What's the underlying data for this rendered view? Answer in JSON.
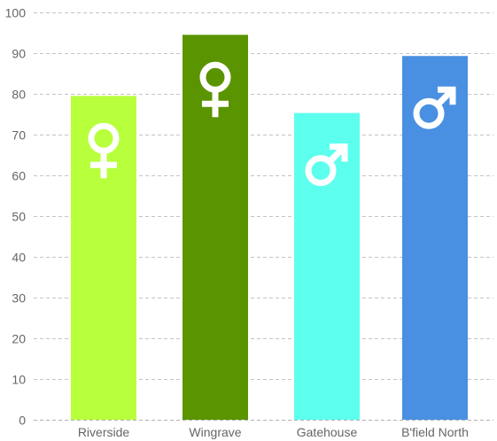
{
  "chart_data": {
    "type": "bar",
    "title": "",
    "xlabel": "",
    "ylabel": "",
    "ylim": [
      0,
      100
    ],
    "yticks": [
      0,
      10,
      20,
      30,
      40,
      50,
      60,
      70,
      80,
      90,
      100
    ],
    "grid": true,
    "legend": "none",
    "categories": [
      "Riverside",
      "Wingrave",
      "Gatehouse",
      "B'field North"
    ],
    "values": [
      79.5,
      94.5,
      75.3,
      89.3
    ],
    "bar_colors": [
      "#b8ff3c",
      "#5a9400",
      "#5cffee",
      "#4a90e2"
    ],
    "bar_icons": [
      "female-symbol-icon",
      "female-symbol-icon",
      "male-symbol-icon",
      "male-symbol-icon"
    ]
  }
}
